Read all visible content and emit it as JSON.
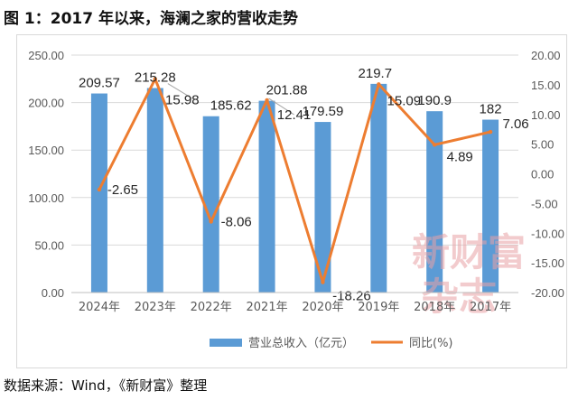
{
  "figure_title": "图 1：2017 年以来，海澜之家的营收走势",
  "source_note": "数据来源：Wind，《新财富》整理",
  "watermark": [
    "新财富",
    "杂志"
  ],
  "colors": {
    "bar": "#5b9bd5",
    "line": "#ed7d31",
    "grid": "#d9d9d9",
    "text": "#595959"
  },
  "chart_data": {
    "type": "bar",
    "categories": [
      "2024年",
      "2023年",
      "2022年",
      "2021年",
      "2020年",
      "2019年",
      "2018年",
      "2017年"
    ],
    "series": [
      {
        "name": "营业总收入（亿元）",
        "type": "bar",
        "axis": "left",
        "values": [
          209.57,
          215.28,
          185.62,
          201.88,
          179.59,
          219.7,
          190.9,
          182
        ],
        "labels": [
          "209.57",
          "215.28",
          "185.62",
          "201.88",
          "179.59",
          "219.7",
          "190.9",
          "182"
        ]
      },
      {
        "name": "同比(%)",
        "type": "line",
        "axis": "right",
        "values": [
          -2.65,
          15.98,
          -8.06,
          12.41,
          -18.26,
          15.09,
          4.89,
          7.06
        ],
        "labels": [
          "-2.65",
          "15.98",
          "-8.06",
          "12.41",
          "-18.26",
          "15.09",
          "4.89",
          "7.06"
        ]
      }
    ],
    "y_left": {
      "min": 0,
      "max": 250,
      "step": 50,
      "ticks": [
        "0.00",
        "50.00",
        "100.00",
        "150.00",
        "200.00",
        "250.00"
      ]
    },
    "y_right": {
      "min": -20,
      "max": 20,
      "step": 5,
      "ticks": [
        "-20.00",
        "-15.00",
        "-10.00",
        "-5.00",
        "0.00",
        "5.00",
        "10.00",
        "15.00",
        "20.00"
      ]
    },
    "grid": true,
    "legend_position": "bottom"
  }
}
